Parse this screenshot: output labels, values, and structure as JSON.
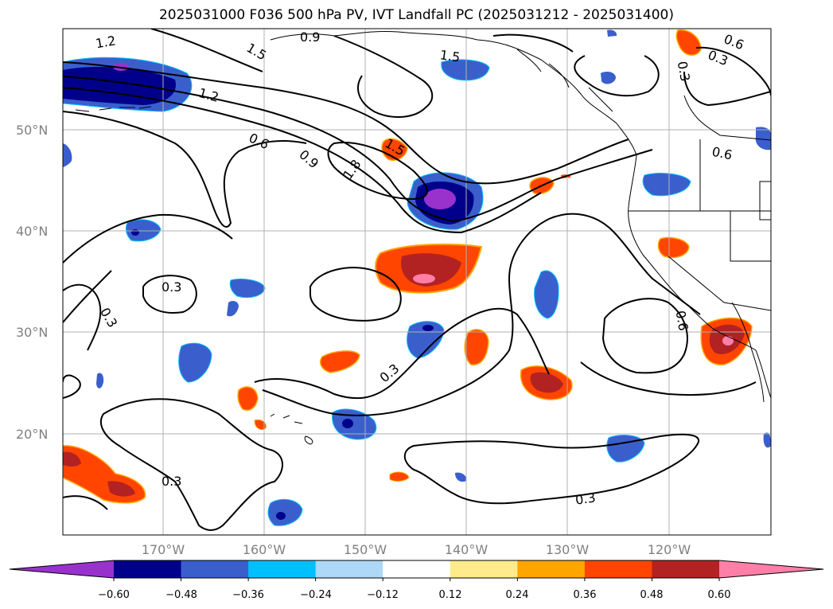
{
  "title": "2025031000 F036 500 hPa PV, IVT Landfall PC (2025031212 - 2025031400)",
  "grid": {
    "lon_labels": [
      "170°W",
      "160°W",
      "150°W",
      "140°W",
      "130°W",
      "120°W"
    ],
    "lat_labels": [
      "50°N",
      "40°N",
      "30°N",
      "20°N"
    ]
  },
  "contour_labels": [
    "1.2",
    "0.9",
    "1.5",
    "1.5",
    "0.6",
    "0.3",
    "0.3",
    "1.2",
    "0.6",
    "0.9",
    "1.8",
    "1.5",
    "0.6",
    "0.3",
    "0.3",
    "0.6",
    "0.3",
    "0.3",
    "0.3"
  ],
  "colorbar": {
    "colors": [
      "#9932cc",
      "#00008b",
      "#3a5fcd",
      "#00bfff",
      "#add8f6",
      "#ffffff",
      "#ffeb8b",
      "#ffa500",
      "#ff4500",
      "#b22222",
      "#ff7fa8"
    ],
    "tick_labels": [
      "−0.60",
      "−0.48",
      "−0.36",
      "−0.24",
      "−0.12",
      "0.12",
      "0.24",
      "0.36",
      "0.48",
      "0.60"
    ]
  }
}
